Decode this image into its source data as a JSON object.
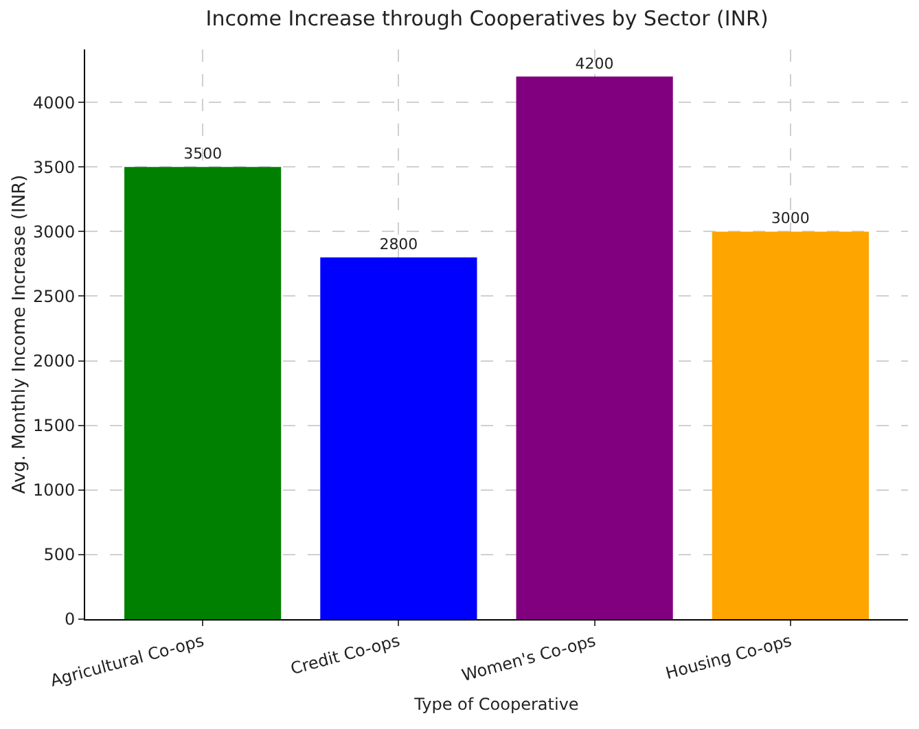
{
  "chart_data": {
    "type": "bar",
    "title": "Income Increase through Cooperatives by Sector (INR)",
    "xlabel": "Type of Cooperative",
    "ylabel": "Avg. Monthly Income Increase (INR)",
    "categories": [
      "Agricultural Co-ops",
      "Credit Co-ops",
      "Women's Co-ops",
      "Housing Co-ops"
    ],
    "values": [
      3500,
      2800,
      4200,
      3000
    ],
    "colors": [
      "#008000",
      "#0000ff",
      "#800080",
      "#ffa500"
    ],
    "ylim": [
      0,
      4410
    ],
    "yticks": [
      0,
      500,
      1000,
      1500,
      2000,
      2500,
      3000,
      3500,
      4000
    ],
    "grid": true,
    "data_labels": true
  }
}
